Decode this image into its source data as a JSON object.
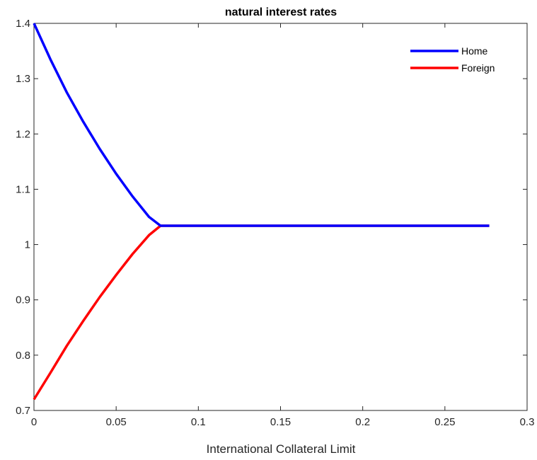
{
  "chart_data": {
    "type": "line",
    "title": "natural interest rates",
    "xlabel": "International Collateral Limit",
    "ylabel": "",
    "xlim": [
      0,
      0.3
    ],
    "ylim": [
      0.7,
      1.4
    ],
    "xticks": [
      "0",
      "0.05",
      "0.1",
      "0.15",
      "0.2",
      "0.25",
      "0.3"
    ],
    "yticks": [
      "0.7",
      "0.8",
      "0.9",
      "1",
      "1.1",
      "1.2",
      "1.3",
      "1.4"
    ],
    "grid": false,
    "legend_position": "top-right",
    "series": [
      {
        "name": "Home",
        "color": "#0000ff",
        "x": [
          0,
          0.01,
          0.02,
          0.03,
          0.04,
          0.05,
          0.06,
          0.07,
          0.077,
          0.1,
          0.15,
          0.2,
          0.25,
          0.277
        ],
        "y": [
          1.4,
          1.335,
          1.275,
          1.222,
          1.173,
          1.128,
          1.087,
          1.05,
          1.034,
          1.034,
          1.034,
          1.034,
          1.034,
          1.034
        ]
      },
      {
        "name": "Foreign",
        "color": "#ff0000",
        "x": [
          0,
          0.01,
          0.02,
          0.03,
          0.04,
          0.05,
          0.06,
          0.07,
          0.077,
          0.1,
          0.15,
          0.2,
          0.25,
          0.277
        ],
        "y": [
          0.72,
          0.768,
          0.817,
          0.862,
          0.905,
          0.945,
          0.983,
          1.017,
          1.034,
          1.034,
          1.034,
          1.034,
          1.034,
          1.034
        ]
      }
    ]
  }
}
